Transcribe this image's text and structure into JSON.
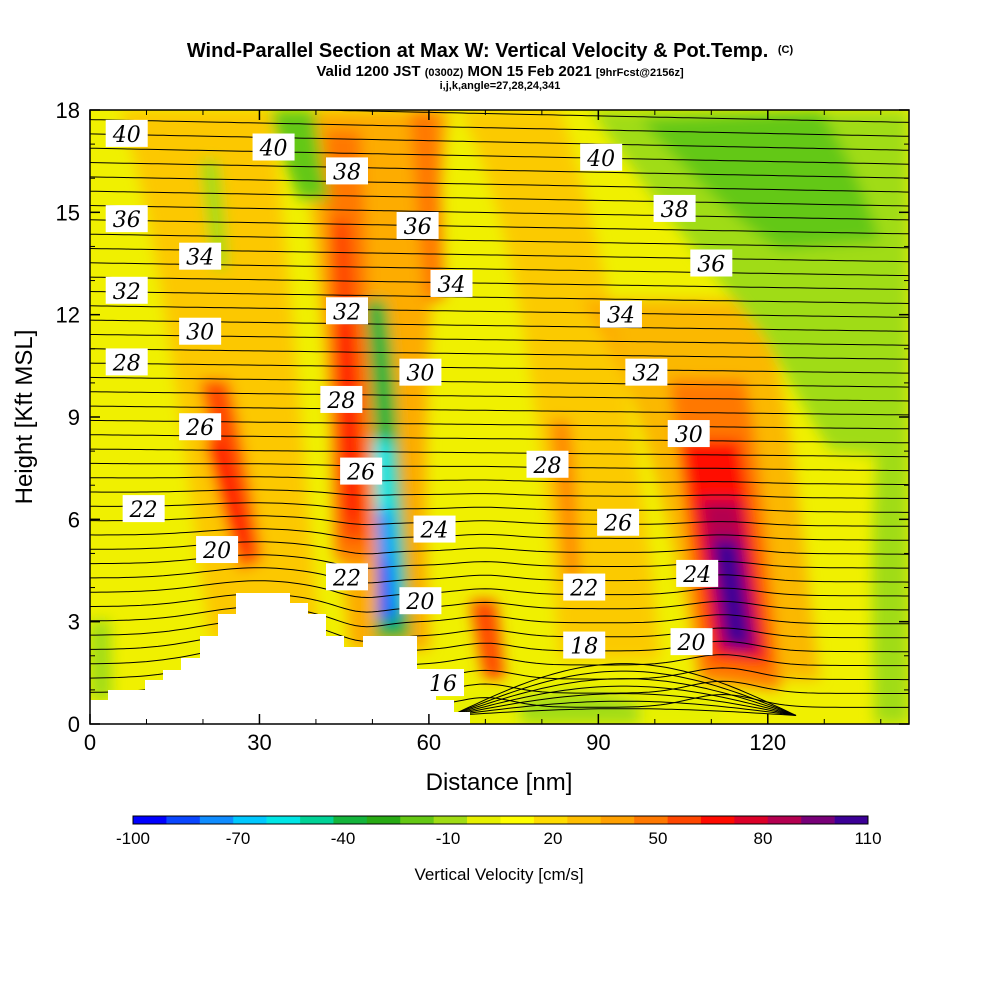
{
  "header": {
    "title_main": "Wind-Parallel Section at Max W: Vertical Velocity & Pot.Temp.",
    "title_mark": "(C)",
    "subtitle_valid": "Valid 1200 JST",
    "subtitle_utc": "(0300Z)",
    "subtitle_date": "MON 15 Feb 2021",
    "subtitle_fcst": "[9hrFcst@2156z]",
    "subtitle_indices": "i,j,k,angle=27,28,24,341"
  },
  "chart_data": {
    "type": "heatmap",
    "xlabel": "Distance [nm]",
    "ylabel": "Height [Kft MSL]",
    "xlim": [
      0,
      145
    ],
    "ylim": [
      0,
      18
    ],
    "xticks": [
      0,
      30,
      60,
      90,
      120
    ],
    "yticks": [
      0,
      3,
      6,
      9,
      12,
      15,
      18
    ],
    "colorbar": {
      "label": "Vertical Velocity [cm/s]",
      "tick_values": [
        -100,
        -70,
        -40,
        -10,
        20,
        50,
        80,
        110
      ],
      "bins": [
        -100,
        -90,
        -80,
        -70,
        -60,
        -50,
        -40,
        -30,
        -20,
        -10,
        0,
        10,
        20,
        30,
        40,
        50,
        60,
        70,
        80,
        90,
        100,
        110
      ],
      "colors": [
        "#0000ff",
        "#0a46ff",
        "#0f8cff",
        "#00c8ff",
        "#00e6e6",
        "#00d296",
        "#14b43c",
        "#28aa14",
        "#64c814",
        "#a0dc14",
        "#e6f000",
        "#ffff00",
        "#ffdc00",
        "#ffbe00",
        "#ffa000",
        "#ff7800",
        "#ff4600",
        "#ff0a00",
        "#dc0028",
        "#b40050",
        "#780078",
        "#3c0096"
      ]
    },
    "contour_labels": [
      {
        "text": "40",
        "x": 6.5,
        "y": 17.3
      },
      {
        "text": "40",
        "x": 32.5,
        "y": 16.9
      },
      {
        "text": "38",
        "x": 45.5,
        "y": 16.2
      },
      {
        "text": "40",
        "x": 90.5,
        "y": 16.6
      },
      {
        "text": "38",
        "x": 103.5,
        "y": 15.1
      },
      {
        "text": "36",
        "x": 6.5,
        "y": 14.8
      },
      {
        "text": "36",
        "x": 58,
        "y": 14.6
      },
      {
        "text": "36",
        "x": 110,
        "y": 13.5
      },
      {
        "text": "34",
        "x": 19.5,
        "y": 13.7
      },
      {
        "text": "34",
        "x": 64,
        "y": 12.9
      },
      {
        "text": "34",
        "x": 94,
        "y": 12
      },
      {
        "text": "32",
        "x": 6.5,
        "y": 12.7
      },
      {
        "text": "32",
        "x": 45.5,
        "y": 12.1
      },
      {
        "text": "32",
        "x": 98.5,
        "y": 10.3
      },
      {
        "text": "30",
        "x": 19.5,
        "y": 11.5
      },
      {
        "text": "30",
        "x": 58.5,
        "y": 10.3
      },
      {
        "text": "30",
        "x": 106,
        "y": 8.5
      },
      {
        "text": "28",
        "x": 6.5,
        "y": 10.6
      },
      {
        "text": "28",
        "x": 44.5,
        "y": 9.5
      },
      {
        "text": "28",
        "x": 81,
        "y": 7.6
      },
      {
        "text": "26",
        "x": 19.5,
        "y": 8.7
      },
      {
        "text": "26",
        "x": 48,
        "y": 7.4
      },
      {
        "text": "26",
        "x": 93.5,
        "y": 5.9
      },
      {
        "text": "24",
        "x": 61,
        "y": 5.7
      },
      {
        "text": "24",
        "x": 107.5,
        "y": 4.4
      },
      {
        "text": "22",
        "x": 9.5,
        "y": 6.3
      },
      {
        "text": "22",
        "x": 45.5,
        "y": 4.3
      },
      {
        "text": "22",
        "x": 87.5,
        "y": 4.0
      },
      {
        "text": "20",
        "x": 22.5,
        "y": 5.1
      },
      {
        "text": "20",
        "x": 58.5,
        "y": 3.6
      },
      {
        "text": "20",
        "x": 106.5,
        "y": 2.4
      },
      {
        "text": "18",
        "x": 87.5,
        "y": 2.3
      },
      {
        "text": "16",
        "x": 62.5,
        "y": 1.2
      }
    ]
  }
}
